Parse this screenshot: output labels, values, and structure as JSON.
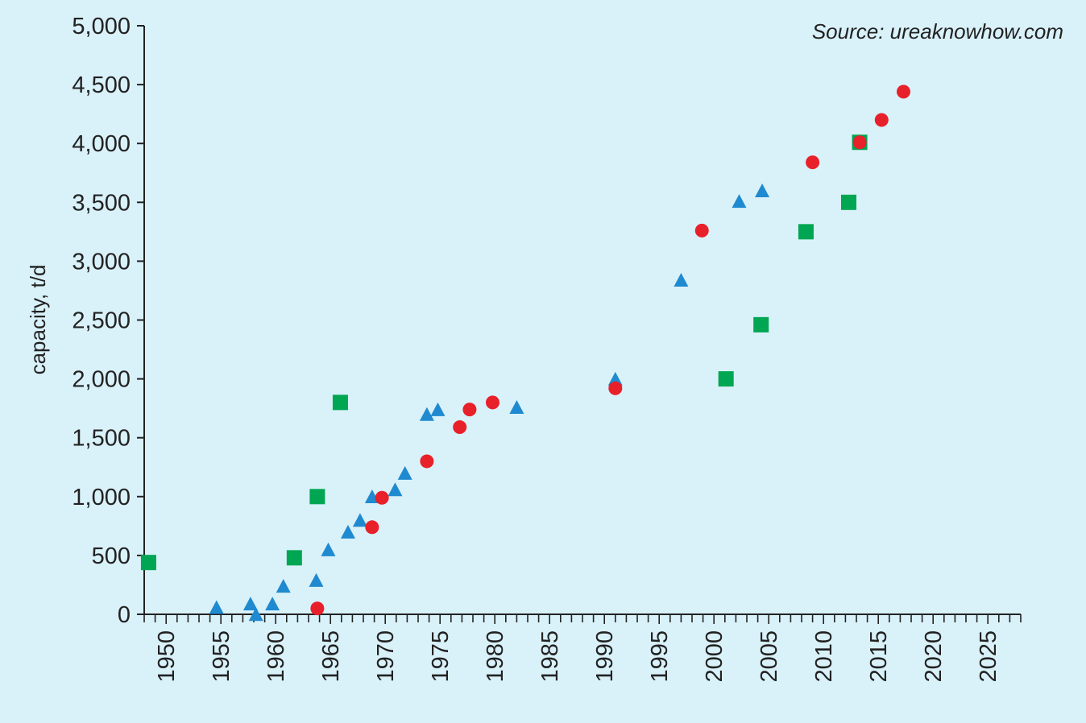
{
  "chart_data": {
    "type": "scatter",
    "title": "",
    "annotation": "Source: ureaknowhow.com",
    "xlabel": "",
    "ylabel": "capacity, t/d",
    "xlim": [
      1948,
      2028
    ],
    "ylim": [
      0,
      5000
    ],
    "x_ticks": [
      1950,
      1955,
      1960,
      1965,
      1970,
      1975,
      1980,
      1985,
      1990,
      1995,
      2000,
      2005,
      2010,
      2015,
      2020,
      2025
    ],
    "y_ticks": [
      0,
      500,
      1000,
      1500,
      2000,
      2500,
      3000,
      3500,
      4000,
      4500,
      5000
    ],
    "y_tick_labels": [
      "0",
      "500",
      "1,000",
      "1,500",
      "2,000",
      "2,500",
      "3,000",
      "3,500",
      "4,000",
      "4,500",
      "5,000"
    ],
    "grid": false,
    "legend": "none",
    "series": [
      {
        "marker": "square",
        "color": "#00a651",
        "x": [
          1948.4,
          1961.7,
          1963.8,
          1965.9,
          2001.1,
          2004.3,
          2008.4,
          2012.3,
          2013.3
        ],
        "y": [
          440,
          480,
          1000,
          1800,
          2000,
          2460,
          3250,
          3500,
          4010
        ]
      },
      {
        "marker": "triangle",
        "color": "#1f8ad0",
        "x": [
          1954.6,
          1957.7,
          1958.2,
          1959.7,
          1960.7,
          1963.7,
          1964.8,
          1966.6,
          1967.7,
          1968.8,
          1970.9,
          1971.8,
          1973.8,
          1974.8,
          1982.0,
          1991.0,
          1997.0,
          2002.3,
          2004.4
        ],
        "y": [
          50,
          80,
          -10,
          80,
          230,
          280,
          540,
          690,
          790,
          990,
          1050,
          1190,
          1690,
          1730,
          1750,
          1990,
          2830,
          3500,
          3590
        ]
      },
      {
        "marker": "circle",
        "color": "#e8202a",
        "x": [
          1963.8,
          1968.8,
          1969.7,
          1973.8,
          1976.8,
          1977.7,
          1979.8,
          1991.0,
          1998.9,
          2009.0,
          2013.3,
          2015.3,
          2017.3
        ],
        "y": [
          50,
          740,
          990,
          1300,
          1590,
          1740,
          1800,
          1920,
          3260,
          3840,
          4010,
          4200,
          4440
        ]
      }
    ]
  }
}
